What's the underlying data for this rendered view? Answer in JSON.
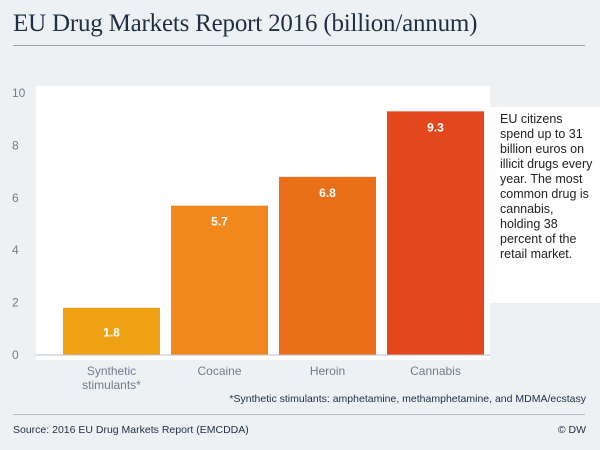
{
  "title": "EU Drug Markets Report 2016 (billion/annum)",
  "note": "EU citizens spend up to 31 billion euros on illicit drugs every year. The most common drug is cannabis, holding 38 percent of the retail market.",
  "footnote": "*Synthetic stimulants: amphetamine, methamphetamine, and MDMA/ecstasy",
  "source": "Source: 2016 EU Drug Markets Report (EMCDDA)",
  "credit": "© DW",
  "chart_data": {
    "type": "bar",
    "title": "EU Drug Markets Report 2016 (billion/annum)",
    "xlabel": "",
    "ylabel": "",
    "ylim": [
      0,
      10
    ],
    "yticks": [
      0,
      2,
      4,
      6,
      8,
      10
    ],
    "grid": false,
    "categories": [
      [
        "Synthetic",
        "stimulants*"
      ],
      [
        "Cocaine"
      ],
      [
        "Heroin"
      ],
      [
        "Cannabis"
      ]
    ],
    "values": [
      1.8,
      5.7,
      6.8,
      9.3
    ],
    "value_labels": [
      "1.8",
      "5.7",
      "6.8",
      "9.3"
    ],
    "colors": [
      "#eea213",
      "#f1871d",
      "#eb6e19",
      "#e2481b"
    ]
  }
}
